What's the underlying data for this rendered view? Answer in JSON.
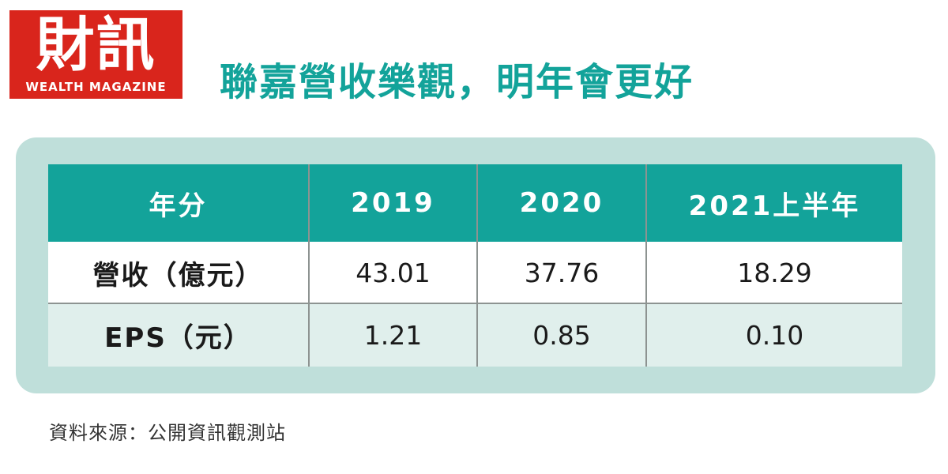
{
  "logo": {
    "main": "財訊",
    "sub": "WEALTH MAGAZINE"
  },
  "title": "聯嘉營收樂觀，明年會更好",
  "colors": {
    "brand_red": "#d9251c",
    "teal": "#13a39a",
    "panel_bg": "#bfdfda",
    "row_alt": "#e0efec"
  },
  "chart_data": {
    "type": "table",
    "title": "聯嘉營收樂觀，明年會更好",
    "columns": [
      "年分",
      "2019",
      "2020",
      "2021上半年"
    ],
    "rows": [
      {
        "label": "營收（億元）",
        "values": [
          "43.01",
          "37.76",
          "18.29"
        ]
      },
      {
        "label": "EPS（元）",
        "values": [
          "1.21",
          "0.85",
          "0.10"
        ]
      }
    ]
  },
  "source": "資料來源：公開資訊觀測站"
}
